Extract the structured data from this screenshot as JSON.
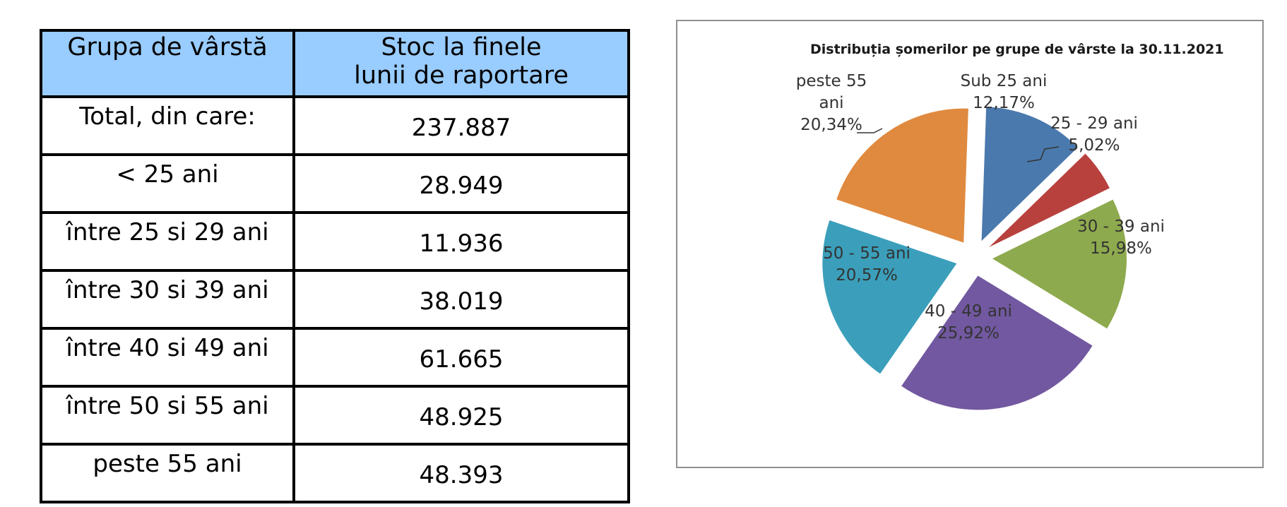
{
  "table": {
    "headers": [
      "Grupa de vârstă",
      "Stoc la finele lunii de raportare"
    ],
    "header2_lines": [
      "Stoc la finele",
      "lunii de raportare"
    ],
    "rows": [
      {
        "label": "Total, din care:",
        "value": "237.887"
      },
      {
        "label": "< 25 ani",
        "value": "28.949"
      },
      {
        "label": "între 25 si 29 ani",
        "value": "11.936"
      },
      {
        "label": "între 30 si 39 ani",
        "value": "38.019"
      },
      {
        "label": "între 40 si 49 ani",
        "value": "61.665"
      },
      {
        "label": "între 50 si 55 ani",
        "value": "48.925"
      },
      {
        "label": "peste 55 ani",
        "value": "48.393"
      }
    ]
  },
  "chart_data": {
    "type": "pie",
    "title": "Distribuția șomerilor pe grupe de vârste la 30.11.2021",
    "exploded": true,
    "slices": [
      {
        "name": "Sub 25 ani",
        "value": 12.17,
        "label": "12,17%",
        "color": "#4a79ad"
      },
      {
        "name": "25 - 29 ani",
        "value": 5.02,
        "label": "5,02%",
        "color": "#b8413e"
      },
      {
        "name": "30 - 39 ani",
        "value": 15.98,
        "label": "15,98%",
        "color": "#8eaa4e"
      },
      {
        "name": "40 - 49 ani",
        "value": 25.92,
        "label": "25,92%",
        "color": "#7258a0"
      },
      {
        "name": "50 - 55 ani",
        "value": 20.57,
        "label": "20,57%",
        "color": "#3b9fbb"
      },
      {
        "name": "peste 55 ani",
        "value": 20.34,
        "label": "20,34%",
        "color": "#e08a3f"
      }
    ],
    "slice_labels": [
      [
        "Sub 25 ani",
        "12,17%"
      ],
      [
        "25 - 29 ani",
        "5,02%"
      ],
      [
        "30 - 39 ani",
        "15,98%"
      ],
      [
        "40 - 49 ani",
        "25,92%"
      ],
      [
        "50 - 55 ani",
        "20,57%"
      ],
      [
        "peste 55",
        "ani",
        "20,34%"
      ]
    ]
  }
}
